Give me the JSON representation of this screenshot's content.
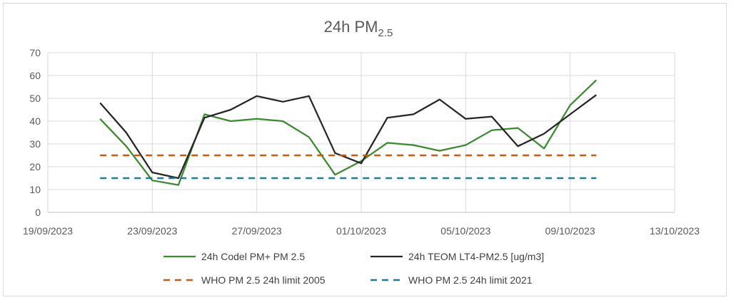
{
  "chart_data": {
    "type": "line",
    "title": "24h PM",
    "title_subscript": "2.5",
    "x_ticks": [
      "19/09/2023",
      "23/09/2023",
      "27/09/2023",
      "01/10/2023",
      "05/10/2023",
      "09/10/2023",
      "13/10/2023"
    ],
    "x_tick_days": [
      0,
      4,
      8,
      12,
      16,
      20,
      24
    ],
    "y_ticks": [
      "0",
      "10",
      "20",
      "30",
      "40",
      "50",
      "60",
      "70"
    ],
    "ylim": [
      0,
      70
    ],
    "grid": "vertical-and-horizontal",
    "legend_position": "bottom",
    "series": [
      {
        "name": "24h Codel PM+ PM 2.5",
        "color": "#3a8a2e",
        "style": "solid",
        "x": [
          "21/09/2023",
          "22/09/2023",
          "23/09/2023",
          "24/09/2023",
          "25/09/2023",
          "26/09/2023",
          "27/09/2023",
          "28/09/2023",
          "29/09/2023",
          "30/09/2023",
          "01/10/2023",
          "02/10/2023",
          "03/10/2023",
          "04/10/2023",
          "05/10/2023",
          "06/10/2023",
          "07/10/2023",
          "08/10/2023",
          "09/10/2023",
          "10/10/2023"
        ],
        "values": [
          41,
          29,
          14,
          12,
          43,
          40,
          41,
          40,
          33,
          16.5,
          22.5,
          30.5,
          29.5,
          27,
          29.5,
          36,
          37,
          28,
          47,
          58
        ]
      },
      {
        "name": "24h TEOM  LT4-PM2.5 [ug/m3]",
        "color": "#262626",
        "style": "solid",
        "x": [
          "21/09/2023",
          "22/09/2023",
          "23/09/2023",
          "24/09/2023",
          "25/09/2023",
          "26/09/2023",
          "27/09/2023",
          "28/09/2023",
          "29/09/2023",
          "30/09/2023",
          "01/10/2023",
          "02/10/2023",
          "03/10/2023",
          "04/10/2023",
          "05/10/2023",
          "06/10/2023",
          "07/10/2023",
          "08/10/2023",
          "09/10/2023",
          "10/10/2023"
        ],
        "values": [
          48,
          35,
          17.5,
          15,
          41.5,
          45,
          51,
          48.5,
          51,
          26,
          21.5,
          41.5,
          43,
          49.5,
          41,
          42,
          29,
          34.5,
          43,
          51.5
        ]
      },
      {
        "name": "WHO PM 2.5 24h limit 2005",
        "color": "#c55a11",
        "style": "dashed",
        "x": [
          "21/09/2023",
          "10/10/2023"
        ],
        "values": [
          25,
          25
        ]
      },
      {
        "name": "WHO PM 2.5 24h limit 2021",
        "color": "#1f7b9a",
        "style": "dashed",
        "x": [
          "21/09/2023",
          "10/10/2023"
        ],
        "values": [
          15,
          15
        ]
      }
    ]
  }
}
